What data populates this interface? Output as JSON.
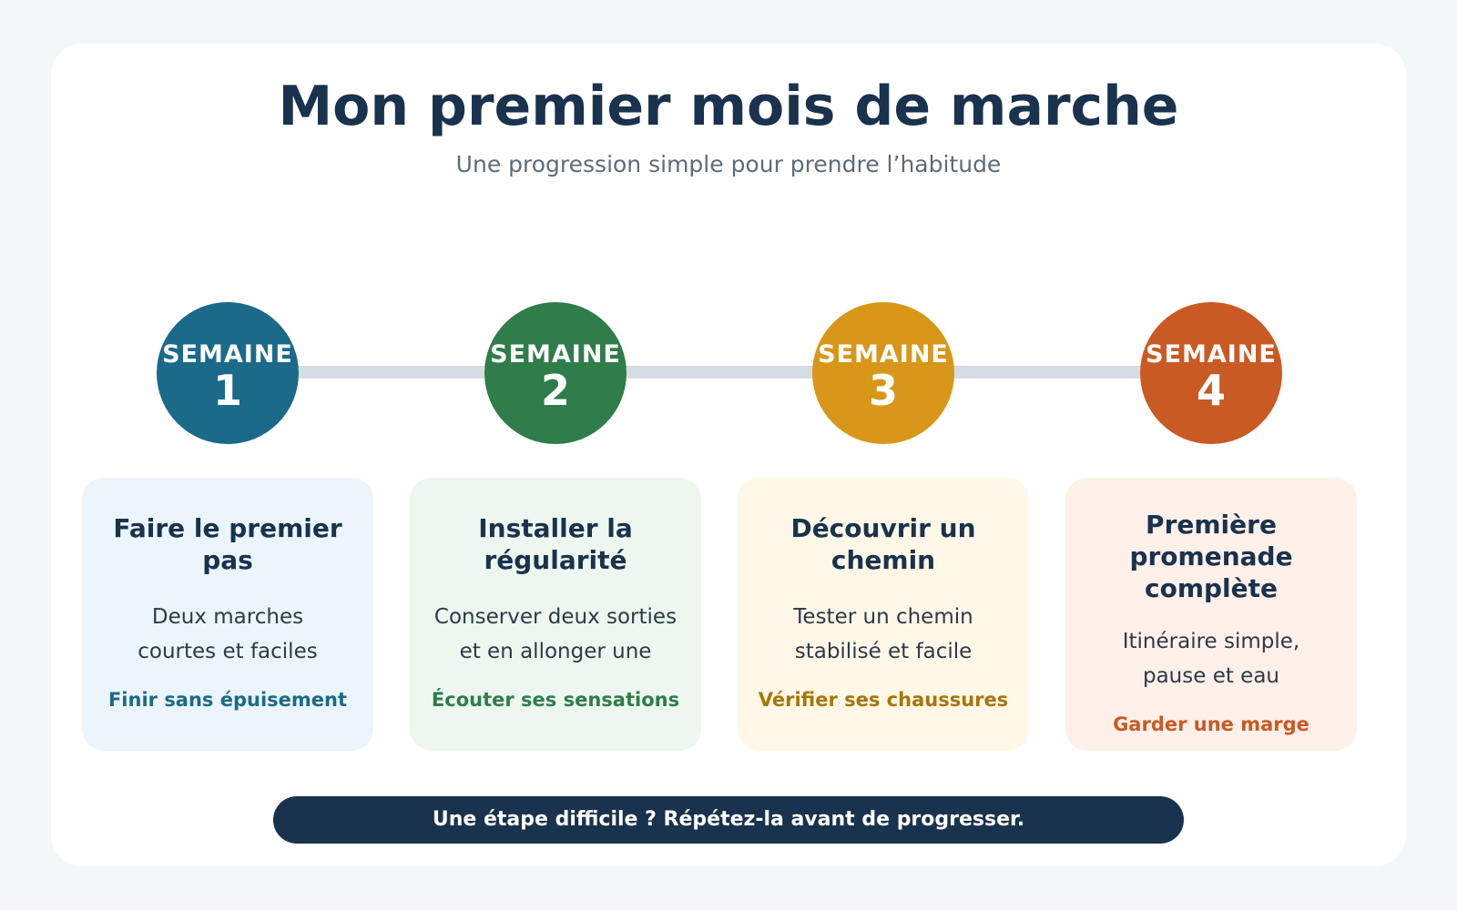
{
  "header": {
    "title": "Mon premier mois de marche",
    "subtitle": "Une progression simple pour prendre l’habitude"
  },
  "colors": {
    "week1": "#1b6a8a",
    "week2": "#2e7d4a",
    "week3": "#d89718",
    "week4": "#c95a24",
    "dark": "#19324d",
    "track": "#d4dde3"
  },
  "weeks": [
    {
      "label": "SEMAINE",
      "number": "1",
      "title": "Faire le premier pas",
      "desc_line1": "Deux marches",
      "desc_line2": "courtes et faciles",
      "tip": "Finir sans épuisement"
    },
    {
      "label": "SEMAINE",
      "number": "2",
      "title": "Installer la régularité",
      "desc_line1": "Conserver deux sorties",
      "desc_line2": "et en allonger une",
      "tip": "Écouter ses sensations"
    },
    {
      "label": "SEMAINE",
      "number": "3",
      "title": "Découvrir un chemin",
      "desc_line1": "Tester un chemin",
      "desc_line2": "stabilisé et facile",
      "tip": "Vérifier ses chaussures"
    },
    {
      "label": "SEMAINE",
      "number": "4",
      "title_line1": "Première promenade",
      "title_line2": "complète",
      "desc_line1": "Itinéraire simple,",
      "desc_line2": "pause et eau",
      "tip": "Garder une marge"
    }
  ],
  "footer": {
    "banner": "Une étape difficile ? Répétez-la avant de progresser."
  }
}
